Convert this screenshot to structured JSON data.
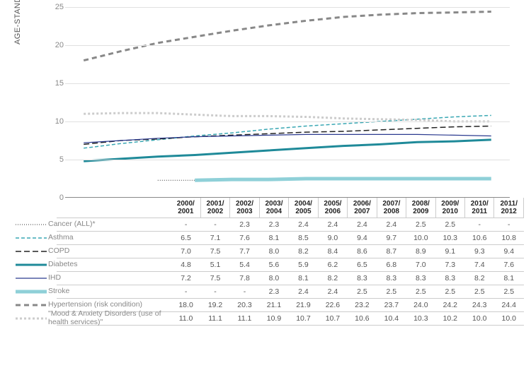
{
  "y_axis_label": "AGE-STANDARDIZED\nRATE (%)",
  "ylim": [
    0,
    25
  ],
  "ytick_step": 5,
  "grid_color": "#e0e0e0",
  "axis_color": "#888888",
  "years_top": [
    "2000/",
    "2001/",
    "2002/",
    "2003/",
    "2004/",
    "2005/",
    "2006/",
    "2007/",
    "2008/",
    "2009/",
    "2010/",
    "2011/"
  ],
  "years_bot": [
    "2001",
    "2002",
    "2003",
    "2004",
    "2005",
    "2006",
    "2007",
    "2008",
    "2009",
    "2010",
    "2011",
    "2012"
  ],
  "series": [
    {
      "name": "Cancer (ALL)*",
      "color": "#333333",
      "width": 1,
      "dash": "1 2",
      "values": [
        "-",
        "-",
        "2.3",
        "2.3",
        "2.4",
        "2.4",
        "2.4",
        "2.4",
        "2.5",
        "2.5",
        "-",
        "-"
      ]
    },
    {
      "name": "Asthma",
      "color": "#39a7b3",
      "width": 1.5,
      "dash": "5 3",
      "values": [
        "6.5",
        "7.1",
        "7.6",
        "8.1",
        "8.5",
        "9.0",
        "9.4",
        "9.7",
        "10.0",
        "10.3",
        "10.6",
        "10.8"
      ]
    },
    {
      "name": "COPD",
      "color": "#222222",
      "width": 1.5,
      "dash": "8 4",
      "values": [
        "7.0",
        "7.5",
        "7.7",
        "8.0",
        "8.2",
        "8.4",
        "8.6",
        "8.7",
        "8.9",
        "9.1",
        "9.3",
        "9.4"
      ]
    },
    {
      "name": "Diabetes",
      "color": "#1f8a99",
      "width": 3,
      "dash": "",
      "values": [
        "4.8",
        "5.1",
        "5.4",
        "5.6",
        "5.9",
        "6.2",
        "6.5",
        "6.8",
        "7.0",
        "7.3",
        "7.4",
        "7.6"
      ]
    },
    {
      "name": "IHD",
      "color": "#2b3a8f",
      "width": 1.2,
      "dash": "",
      "values": [
        "7.2",
        "7.5",
        "7.8",
        "8.0",
        "8.1",
        "8.2",
        "8.3",
        "8.3",
        "8.3",
        "8.3",
        "8.2",
        "8.1"
      ]
    },
    {
      "name": "Stroke",
      "color": "#8fd0d8",
      "width": 5,
      "dash": "",
      "values": [
        "-",
        "-",
        "-",
        "2.3",
        "2.4",
        "2.4",
        "2.5",
        "2.5",
        "2.5",
        "2.5",
        "2.5",
        "2.5"
      ]
    },
    {
      "name": "Hypertension (risk condition)",
      "color": "#888888",
      "width": 3,
      "dash": "7 5",
      "values": [
        "18.0",
        "19.2",
        "20.3",
        "21.1",
        "21.9",
        "22.6",
        "23.2",
        "23.7",
        "24.0",
        "24.2",
        "24.3",
        "24.4"
      ]
    },
    {
      "name": "\"Mood & Anxiety Disorders (use of health services)\"",
      "color": "#cccccc",
      "width": 3,
      "dash": "3 3",
      "values": [
        "11.0",
        "11.1",
        "11.1",
        "10.9",
        "10.7",
        "10.7",
        "10.6",
        "10.4",
        "10.3",
        "10.2",
        "10.0",
        "10.0"
      ]
    }
  ]
}
